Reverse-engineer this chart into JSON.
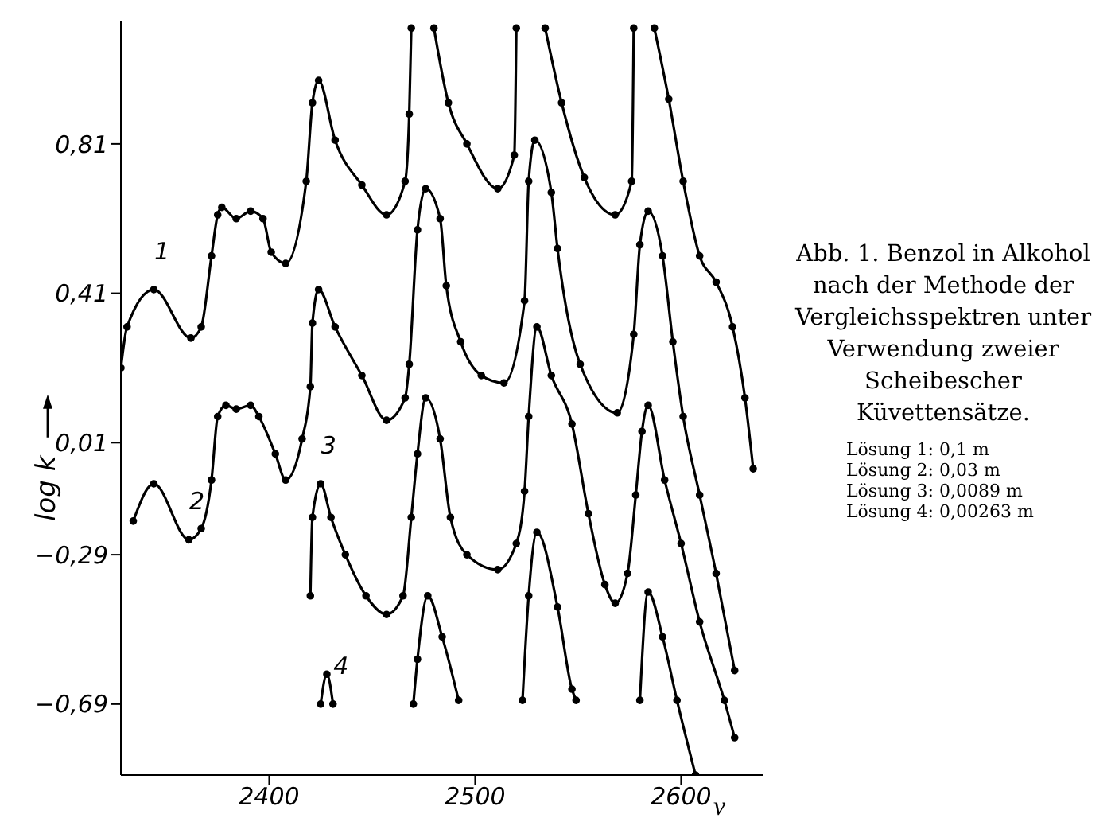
{
  "chart_data": {
    "type": "line",
    "title": "Abb. 1. Benzol in Alkohol nach der Methode der Vergleichsspektren unter Verwendung zweier Scheibescher Küvettensätze.",
    "xlabel": "ν",
    "ylabel": "log k",
    "annotations": [
      "Lösung 1: 0,1 m",
      "Lösung 2: 0,03 m",
      "Lösung 3: 0,0089 m",
      "Lösung 4: 0,00263 m"
    ],
    "xlim": [
      2328,
      2640
    ],
    "xticks": [
      2400,
      2500,
      2600
    ],
    "ylim": [
      -0.88,
      1.14
    ],
    "yticks": [
      {
        "value": 0.81,
        "label": "0,81"
      },
      {
        "value": 0.41,
        "label": "0,41"
      },
      {
        "value": 0.01,
        "label": "0,01"
      },
      {
        "value": -0.29,
        "label": "−0,29"
      },
      {
        "value": -0.69,
        "label": "−0,69"
      }
    ],
    "grid": false,
    "legend": false,
    "marker": "circle",
    "line_style": "solid",
    "series": [
      {
        "name": "1",
        "color": "#000000",
        "x": [
          2328,
          2331,
          2344,
          2362,
          2367,
          2372,
          2375,
          2377,
          2384,
          2391,
          2397,
          2401,
          2408,
          2418,
          2421,
          2424,
          2432,
          2445,
          2457,
          2466,
          2468,
          2469,
          2475,
          2480,
          2487,
          2496,
          2511,
          2519,
          2520,
          2527,
          2534,
          2542,
          2553,
          2568,
          2576,
          2577,
          2582,
          2587,
          2594,
          2601,
          2609,
          2617,
          2625,
          2631,
          2635
        ],
        "values": [
          0.21,
          0.32,
          0.42,
          0.29,
          0.32,
          0.51,
          0.62,
          0.64,
          0.61,
          0.63,
          0.61,
          0.52,
          0.49,
          0.71,
          0.92,
          0.98,
          0.82,
          0.7,
          0.62,
          0.71,
          0.89,
          1.12,
          null,
          1.12,
          0.92,
          0.81,
          0.69,
          0.78,
          1.12,
          null,
          1.12,
          0.92,
          0.72,
          0.62,
          0.71,
          1.12,
          null,
          1.12,
          0.93,
          0.71,
          0.51,
          0.44,
          0.32,
          0.13,
          -0.06
        ]
      },
      {
        "name": "2",
        "color": "#000000",
        "x": [
          2334,
          2344,
          2361,
          2367,
          2372,
          2375,
          2379,
          2384,
          2391,
          2395,
          2403,
          2408,
          2416,
          2420,
          2421,
          2424,
          2432,
          2445,
          2457,
          2466,
          2468,
          2472,
          2476,
          2483,
          2486,
          2493,
          2503,
          2514,
          2524,
          2526,
          2529,
          2537,
          2540,
          2551,
          2569,
          2577,
          2580,
          2584,
          2591,
          2596,
          2601,
          2609,
          2617,
          2626
        ],
        "values": [
          -0.2,
          -0.1,
          -0.25,
          -0.22,
          -0.09,
          0.08,
          0.11,
          0.1,
          0.11,
          0.08,
          -0.02,
          -0.09,
          0.02,
          0.16,
          0.33,
          0.42,
          0.32,
          0.19,
          0.07,
          0.13,
          0.22,
          0.58,
          0.69,
          0.61,
          0.43,
          0.28,
          0.19,
          0.17,
          0.39,
          0.71,
          0.82,
          0.68,
          0.53,
          0.22,
          0.09,
          0.3,
          0.54,
          0.63,
          0.51,
          0.28,
          0.08,
          -0.13,
          -0.34,
          -0.6
        ]
      },
      {
        "name": "3",
        "color": "#000000",
        "x": [
          2420,
          2421,
          2425,
          2430,
          2437,
          2447,
          2457,
          2465,
          2469,
          2472,
          2476,
          2483,
          2488,
          2496,
          2511,
          2520,
          2524,
          2526,
          2530,
          2537,
          2547,
          2555,
          2563,
          2568,
          2574,
          2578,
          2581,
          2584,
          2592,
          2600,
          2609,
          2621,
          2626
        ],
        "values": [
          -0.4,
          -0.19,
          -0.1,
          -0.19,
          -0.29,
          -0.4,
          -0.45,
          -0.4,
          -0.19,
          -0.02,
          0.13,
          0.02,
          -0.19,
          -0.29,
          -0.33,
          -0.26,
          -0.12,
          0.08,
          0.32,
          0.19,
          0.06,
          -0.18,
          -0.37,
          -0.42,
          -0.34,
          -0.13,
          0.04,
          0.11,
          -0.09,
          -0.26,
          -0.47,
          -0.68,
          -0.78
        ]
      },
      {
        "name": "4",
        "color": "#000000",
        "x": [
          2425,
          2428,
          2431,
          2450,
          2470,
          2472,
          2477,
          2484,
          2492,
          2510,
          2523,
          2526,
          2530,
          2540,
          2547,
          2549,
          2565,
          2580,
          2584,
          2591,
          2598,
          2607
        ],
        "values": [
          -0.69,
          -0.61,
          -0.69,
          null,
          -0.69,
          -0.57,
          -0.4,
          -0.51,
          -0.68,
          null,
          -0.68,
          -0.4,
          -0.23,
          -0.43,
          -0.65,
          -0.68,
          null,
          -0.68,
          -0.39,
          -0.51,
          -0.68,
          -0.88
        ]
      }
    ]
  }
}
